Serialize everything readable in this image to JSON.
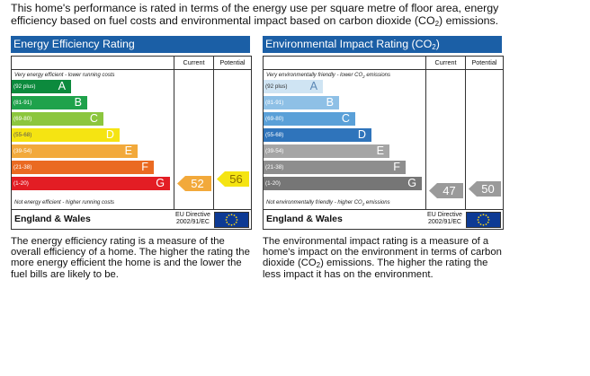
{
  "intro": {
    "line1": "This home's performance is rated in terms of the energy use per square metre of floor area, energy",
    "line2_a": "efficiency based on fuel costs and environmental impact based on carbon dioxide (CO",
    "line2_sub": "2",
    "line2_b": ") emissions."
  },
  "energy_efficiency": {
    "title": "Energy Efficiency Rating",
    "col_current": "Current",
    "col_potential": "Potential",
    "note_top": "Very energy efficient - lower running costs",
    "note_bottom": "Not energy efficient - higher running costs",
    "bands": [
      {
        "range": "(92 plus)",
        "letter": "A",
        "color": "#0c8a3d"
      },
      {
        "range": "(81-91)",
        "letter": "B",
        "color": "#1fa24b"
      },
      {
        "range": "(69-80)",
        "letter": "C",
        "color": "#8cc63e"
      },
      {
        "range": "(55-68)",
        "letter": "D",
        "color": "#f5e412"
      },
      {
        "range": "(39-54)",
        "letter": "E",
        "color": "#f2a93b"
      },
      {
        "range": "(21-38)",
        "letter": "F",
        "color": "#ea6a22"
      },
      {
        "range": "(1-20)",
        "letter": "G",
        "color": "#e31d24"
      }
    ],
    "current_value": "52",
    "potential_value": "56",
    "current_color": "#f2a93b",
    "potential_color": "#f5e412",
    "region": "England & Wales",
    "directive_line1": "EU Directive",
    "directive_line2": "2002/91/EC",
    "description": "The energy efficiency rating is a measure of the overall efficiency of a home. The higher the rating the more energy efficient the home is and the lower the fuel bills are likely to be."
  },
  "environmental_impact": {
    "title_a": "Environmental Impact Rating (CO",
    "title_sub": "2",
    "title_b": ")",
    "col_current": "Current",
    "col_potential": "Potential",
    "note_top_a": "Very environmentally friendly - lower CO",
    "note_top_sub": "2",
    "note_top_b": " emissions",
    "note_bottom_a": "Not environmentally friendly - higher CO",
    "note_bottom_sub": "2",
    "note_bottom_b": " emissions",
    "bands": [
      {
        "range": "(92 plus)",
        "letter": "A",
        "color": "#cfe4f3"
      },
      {
        "range": "(81-91)",
        "letter": "B",
        "color": "#8ec0e6"
      },
      {
        "range": "(69-80)",
        "letter": "C",
        "color": "#5aa0d8"
      },
      {
        "range": "(55-68)",
        "letter": "D",
        "color": "#2f74bb"
      },
      {
        "range": "(39-54)",
        "letter": "E",
        "color": "#a5a5a5"
      },
      {
        "range": "(21-38)",
        "letter": "F",
        "color": "#8e8e8e"
      },
      {
        "range": "(1-20)",
        "letter": "G",
        "color": "#767676"
      }
    ],
    "current_value": "47",
    "potential_value": "50",
    "current_color": "#9a9a9a",
    "potential_color": "#9a9a9a",
    "region": "England & Wales",
    "directive_line1": "EU Directive",
    "directive_line2": "2002/91/EC",
    "description_a": "The environmental impact rating is a measure of a home's impact on the environment in terms of carbon dioxide (CO",
    "description_sub": "2",
    "description_b": ") emissions. The higher the rating the less impact it has on the environment."
  }
}
